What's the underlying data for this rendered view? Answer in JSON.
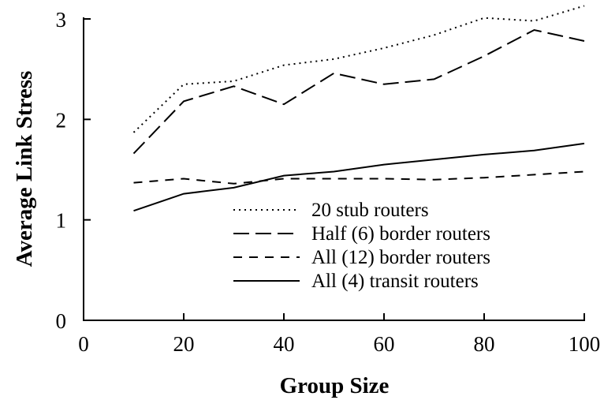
{
  "chart_data": {
    "type": "line",
    "title": "",
    "xlabel": "Group Size",
    "ylabel": "Average Link Stress",
    "xlim": [
      0,
      100
    ],
    "ylim": [
      0,
      3
    ],
    "xticks": [
      0,
      20,
      40,
      60,
      80,
      100
    ],
    "yticks": [
      0,
      1,
      2,
      3
    ],
    "grid": false,
    "legend_position": "bottom-center",
    "x": [
      10,
      20,
      30,
      40,
      50,
      60,
      70,
      80,
      90,
      100
    ],
    "series": [
      {
        "name": "20 stub routers",
        "dash": "dotted",
        "values": [
          1.87,
          2.35,
          2.38,
          2.54,
          2.6,
          2.71,
          2.84,
          3.01,
          2.98,
          3.13
        ]
      },
      {
        "name": "Half (6) border routers",
        "dash": "long-dash",
        "values": [
          1.66,
          2.18,
          2.33,
          2.15,
          2.46,
          2.35,
          2.4,
          2.63,
          2.89,
          2.78
        ]
      },
      {
        "name": "All (12) border routers",
        "dash": "short-dash",
        "values": [
          1.37,
          1.41,
          1.36,
          1.41,
          1.41,
          1.41,
          1.4,
          1.42,
          1.45,
          1.48
        ]
      },
      {
        "name": "All (4) transit routers",
        "dash": "solid",
        "values": [
          1.09,
          1.26,
          1.32,
          1.44,
          1.48,
          1.55,
          1.6,
          1.65,
          1.69,
          1.76
        ]
      }
    ]
  }
}
